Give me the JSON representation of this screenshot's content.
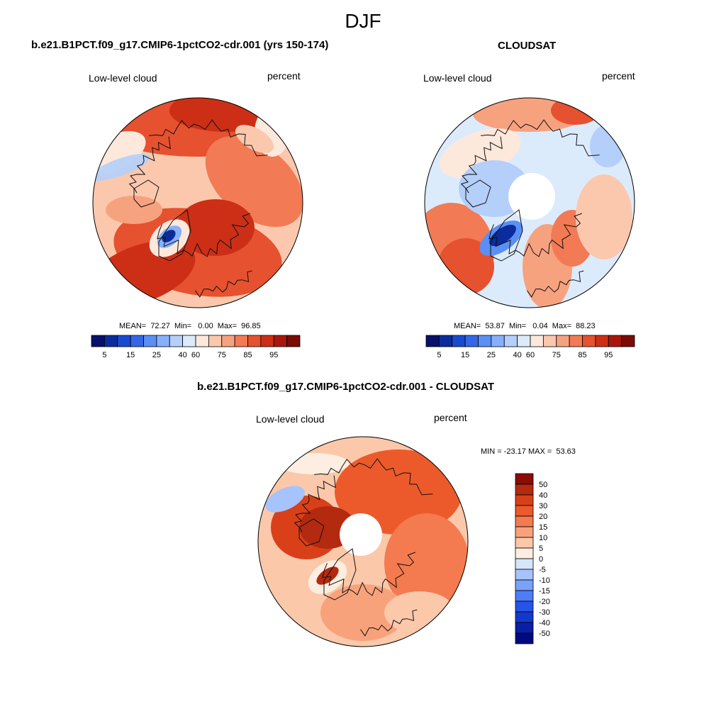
{
  "figure": {
    "title": "DJF"
  },
  "panels": [
    {
      "id": "model",
      "title": "b.e21.B1PCT.f09_g17.CMIP6-1pctCO2-cdr.001 (yrs 150-174)",
      "left_label": "Low-level cloud",
      "right_label": "percent",
      "stats": "MEAN=  72.27  Min=   0.00  Max=  96.85",
      "colorbar_ticks": [
        "5",
        "15",
        "25",
        "40",
        "60",
        "75",
        "85",
        "95"
      ]
    },
    {
      "id": "obs",
      "title": "CLOUDSAT",
      "left_label": "Low-level cloud",
      "right_label": "percent",
      "stats": "MEAN=  53.87  Min=   0.04  Max=  88.23",
      "colorbar_ticks": [
        "5",
        "15",
        "25",
        "40",
        "60",
        "75",
        "85",
        "95"
      ]
    },
    {
      "id": "diff",
      "title": "b.e21.B1PCT.f09_g17.CMIP6-1pctCO2-cdr.001 - CLOUDSAT",
      "left_label": "Low-level cloud",
      "right_label": "percent",
      "stats": "MIN = -23.17 MAX =  53.63",
      "colorbar_ticks": [
        "50",
        "40",
        "30",
        "20",
        "15",
        "10",
        "5",
        "0",
        "-5",
        "-10",
        "-15",
        "-20",
        "-30",
        "-40",
        "-50"
      ]
    }
  ],
  "chart_data": {
    "type": "heatmap",
    "season": "DJF",
    "variable": "Low-level cloud",
    "units": "percent",
    "maps": [
      {
        "name": "b.e21.B1PCT.f09_g17.CMIP6-1pctCO2-cdr.001 (yrs 150-174)",
        "mean": 72.27,
        "min": 0.0,
        "max": 96.85
      },
      {
        "name": "CLOUDSAT",
        "mean": 53.87,
        "min": 0.04,
        "max": 88.23
      },
      {
        "name": "b.e21.B1PCT.f09_g17.CMIP6-1pctCO2-cdr.001 - CLOUDSAT",
        "min": -23.17,
        "max": 53.63
      }
    ],
    "abs_levels": [
      5,
      10,
      15,
      20,
      25,
      30,
      40,
      50,
      60,
      70,
      75,
      80,
      85,
      90,
      95
    ],
    "diff_levels": [
      -50,
      -40,
      -30,
      -20,
      -15,
      -10,
      -5,
      0,
      5,
      10,
      15,
      20,
      30,
      40,
      50
    ],
    "abs_palette": [
      "#08106b",
      "#0b2c9c",
      "#1a4ad0",
      "#3566e6",
      "#5b8ff5",
      "#86b0fb",
      "#b4cffa",
      "#dcebfb",
      "#fde8dc",
      "#fbc8ad",
      "#f7a27f",
      "#f27a55",
      "#e6512f",
      "#cc2f16",
      "#a8170a",
      "#7a0b05"
    ],
    "diff_palette": [
      "#000a80",
      "#0a1fa8",
      "#1438cc",
      "#2653e8",
      "#4f7df7",
      "#7aa2fb",
      "#a6c4fb",
      "#d6e6fa",
      "#fdeee1",
      "#fbc8aa",
      "#f8a27c",
      "#f47a50",
      "#ec5a2c",
      "#d9401a",
      "#b32a10",
      "#8a0c04"
    ]
  }
}
